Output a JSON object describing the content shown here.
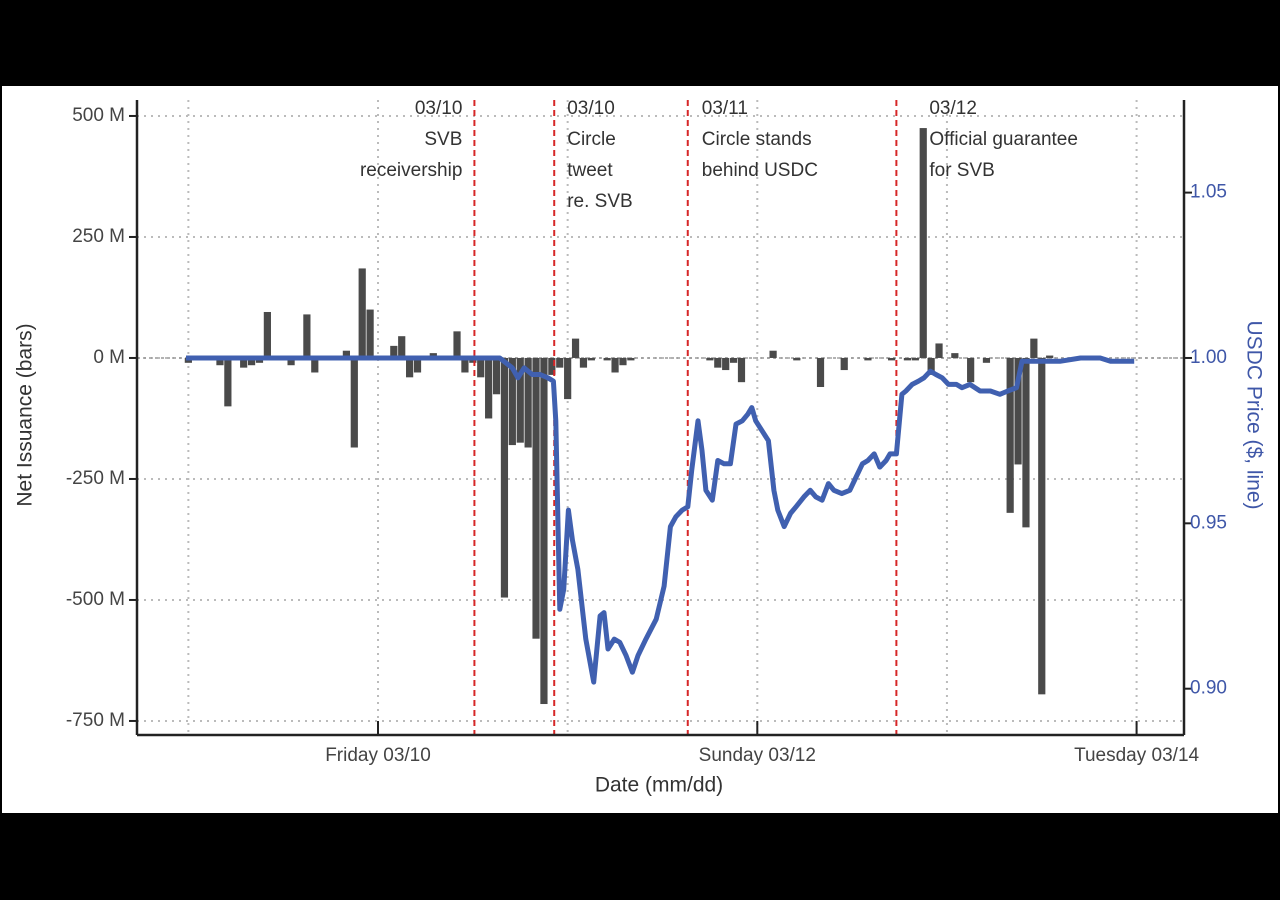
{
  "chart_data": {
    "type": "bar_line",
    "x_label": "Date (mm/dd)",
    "y_label": "Net Issuance (bars)",
    "y2_label": "USDC Price ($, line)",
    "xlim": [
      -30.5,
      102
    ],
    "xticks": [
      {
        "value": 0,
        "label": "Friday 03/10"
      },
      {
        "value": 48,
        "label": "Sunday 03/12"
      },
      {
        "value": 96,
        "label": "Tuesday 03/14"
      }
    ],
    "x_minor_ticks": [
      -24,
      24,
      72
    ],
    "ylim": [
      -779,
      533
    ],
    "yticks": [
      {
        "value": 500,
        "label": "500 M"
      },
      {
        "value": 250,
        "label": "250 M"
      },
      {
        "value": 0,
        "label": "0 M"
      },
      {
        "value": -250,
        "label": "-250 M"
      },
      {
        "value": -500,
        "label": "-500 M"
      },
      {
        "value": -750,
        "label": "-750 M"
      }
    ],
    "y2lim": [
      0.886,
      1.078
    ],
    "y2ticks": [
      {
        "value": 0.9,
        "label": "0.90"
      },
      0.95,
      {
        "value": 1,
        "label": "1.00"
      },
      1.05
    ],
    "grid": true,
    "events": [
      {
        "x": 12.2,
        "color": "#d62728",
        "lines": [
          "03/10",
          "SVB",
          "receivership"
        ]
      },
      {
        "x": 22.3,
        "color": "#d62728",
        "lines": [
          "03/10",
          "Circle",
          "tweet",
          "re. SVB"
        ]
      },
      {
        "x": 39.2,
        "color": "#d62728",
        "lines": [
          "03/11",
          "Circle stands",
          "behind USDC"
        ]
      },
      {
        "x": 65.6,
        "color": "#d62728",
        "lines": [
          "03/12",
          "Official guarantee",
          "for SVB"
        ]
      }
    ],
    "series": [
      {
        "type": "bar",
        "color": "#4a4a4a",
        "x": [
          -24,
          -20,
          -19,
          -17,
          -16,
          -15,
          -14,
          -13,
          -12,
          -11,
          -9,
          -8,
          -6,
          -4,
          -3,
          -2,
          -1,
          0,
          1,
          2,
          3,
          4,
          5,
          6,
          7,
          8,
          9,
          10,
          11,
          12,
          13,
          14,
          15,
          16,
          17,
          18,
          19,
          20,
          21,
          22,
          23,
          24,
          25,
          26,
          27,
          29,
          30,
          31,
          32,
          42,
          43,
          44,
          45,
          46,
          50,
          53,
          56,
          59,
          62,
          65,
          67,
          68,
          69,
          70,
          71,
          73,
          75,
          77,
          80,
          81,
          82,
          83,
          84,
          85
        ],
        "values": [
          -10,
          -15,
          -100,
          -20,
          -15,
          -10,
          95,
          -5,
          -5,
          -15,
          90,
          -30,
          -5,
          15,
          -185,
          185,
          100,
          -5,
          5,
          25,
          45,
          -40,
          -30,
          -5,
          10,
          5,
          -5,
          55,
          -30,
          -10,
          -40,
          -125,
          -75,
          -495,
          -180,
          -175,
          -185,
          -580,
          -715,
          -35,
          -20,
          -85,
          40,
          -20,
          -5,
          -5,
          -30,
          -15,
          -5,
          -5,
          -20,
          -25,
          -10,
          -50,
          15,
          -5,
          -60,
          -25,
          -5,
          -5,
          -5,
          -5,
          475,
          -35,
          30,
          10,
          -50,
          -10,
          -320,
          -220,
          -350,
          40,
          -695,
          5
        ]
      },
      {
        "type": "line",
        "axis": "y2",
        "color": "#4060b0",
        "x": [
          -24.3,
          15.4,
          17.0,
          17.7,
          18.5,
          19.5,
          20.5,
          21.5,
          22.2,
          22.5,
          23.0,
          23.5,
          24.1,
          24.6,
          25.3,
          26.3,
          27.3,
          28.1,
          28.6,
          29.1,
          29.9,
          30.6,
          31.4,
          32.2,
          32.9,
          33.9,
          35.2,
          36.2,
          37.0,
          37.7,
          38.5,
          39.2,
          39.7,
          40.5,
          41.0,
          41.5,
          42.3,
          43.0,
          43.8,
          44.6,
          45.3,
          46.1,
          46.8,
          47.3,
          47.8,
          48.6,
          49.4,
          50.1,
          50.6,
          51.4,
          52.2,
          52.9,
          53.9,
          54.7,
          55.4,
          56.2,
          57.0,
          57.7,
          58.7,
          59.7,
          60.5,
          61.3,
          62.0,
          62.8,
          63.5,
          64.3,
          64.8,
          65.6,
          66.3,
          66.8,
          67.6,
          68.4,
          69.1,
          69.9,
          70.6,
          71.4,
          72.2,
          73.2,
          73.9,
          74.9,
          76.2,
          77.5,
          78.7,
          79.7,
          80.8,
          81.5,
          82.0,
          83.8,
          86.3,
          88.9,
          91.4,
          92.7,
          95.2,
          95.7
        ],
        "values": [
          1.0,
          1.0,
          0.997,
          0.994,
          0.997,
          0.995,
          0.995,
          0.994,
          0.993,
          0.981,
          0.924,
          0.93,
          0.954,
          0.945,
          0.936,
          0.915,
          0.902,
          0.922,
          0.923,
          0.912,
          0.915,
          0.914,
          0.91,
          0.905,
          0.91,
          0.915,
          0.921,
          0.931,
          0.949,
          0.952,
          0.954,
          0.955,
          0.966,
          0.981,
          0.972,
          0.96,
          0.957,
          0.969,
          0.968,
          0.968,
          0.98,
          0.981,
          0.983,
          0.985,
          0.981,
          0.978,
          0.975,
          0.96,
          0.954,
          0.949,
          0.953,
          0.955,
          0.958,
          0.96,
          0.958,
          0.957,
          0.962,
          0.96,
          0.959,
          0.96,
          0.964,
          0.968,
          0.969,
          0.971,
          0.967,
          0.969,
          0.971,
          0.971,
          0.989,
          0.99,
          0.992,
          0.993,
          0.994,
          0.996,
          0.995,
          0.994,
          0.992,
          0.992,
          0.991,
          0.992,
          0.99,
          0.99,
          0.989,
          0.99,
          0.991,
          0.999,
          0.999,
          0.999,
          0.999,
          1.0,
          1.0,
          0.999,
          0.999,
          0.999
        ]
      }
    ]
  }
}
